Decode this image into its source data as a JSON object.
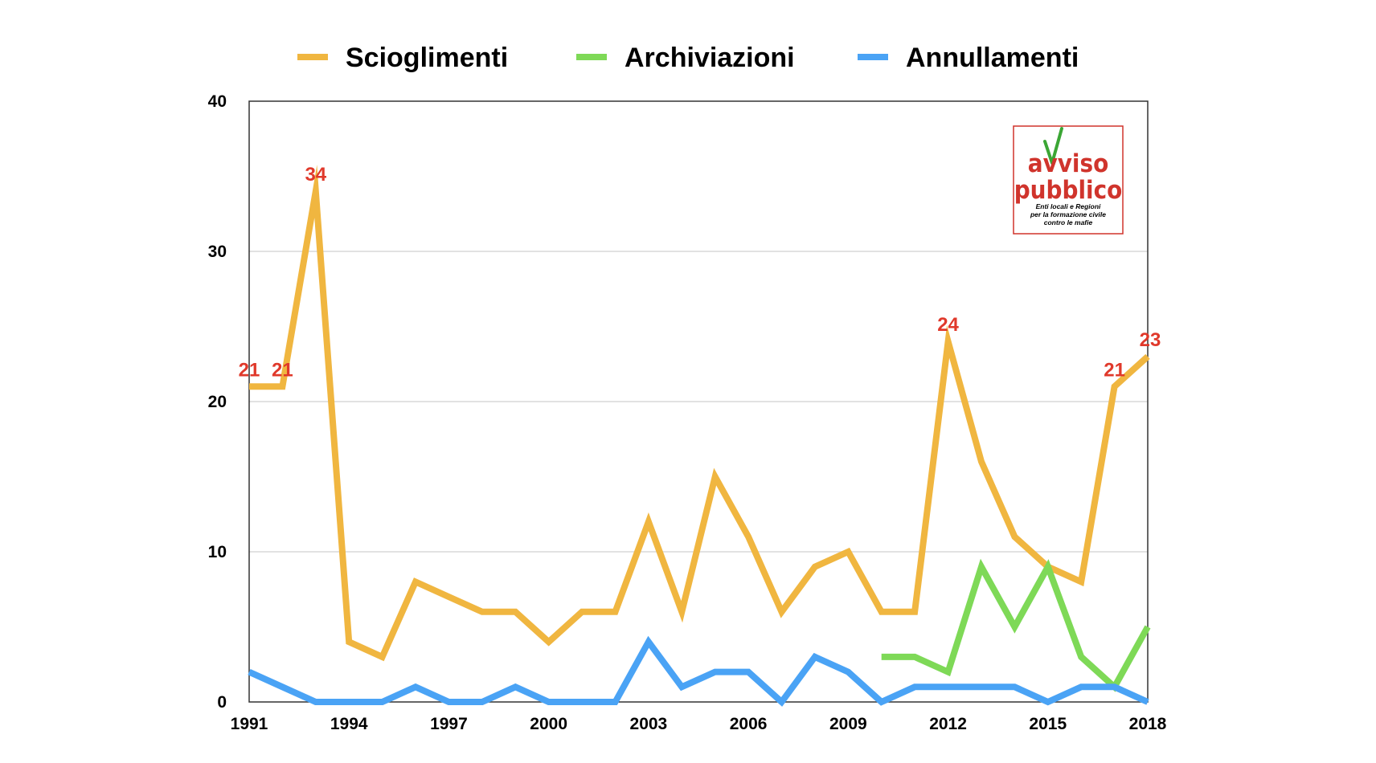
{
  "chart_data": {
    "type": "line",
    "x": [
      1991,
      1992,
      1993,
      1994,
      1995,
      1996,
      1997,
      1998,
      1999,
      2000,
      2001,
      2002,
      2003,
      2004,
      2005,
      2006,
      2007,
      2008,
      2009,
      2010,
      2011,
      2012,
      2013,
      2014,
      2015,
      2016,
      2017,
      2018
    ],
    "x_tick_labels": [
      "1991",
      "1994",
      "1997",
      "2000",
      "2003",
      "2006",
      "2009",
      "2012",
      "2015",
      "2018"
    ],
    "y_ticks": [
      "0",
      "10",
      "20",
      "30",
      "40"
    ],
    "ylim": [
      0,
      40
    ],
    "xlim": [
      1991,
      2018
    ],
    "grid": "horizontal",
    "legend_position": "top-center",
    "series": [
      {
        "name": "Scioglimenti",
        "color": "#F0B640",
        "values": [
          21,
          21,
          34,
          4,
          3,
          8,
          7,
          6,
          6,
          4,
          6,
          6,
          12,
          6,
          15,
          11,
          6,
          9,
          10,
          6,
          6,
          24,
          16,
          11,
          9,
          8,
          21,
          23
        ]
      },
      {
        "name": "Archiviazioni",
        "color": "#7ED957",
        "values": [
          null,
          null,
          null,
          null,
          null,
          null,
          null,
          null,
          null,
          null,
          null,
          null,
          null,
          null,
          null,
          null,
          null,
          null,
          null,
          3,
          3,
          2,
          9,
          5,
          9,
          3,
          1,
          5
        ]
      },
      {
        "name": "Annullamenti",
        "color": "#4AA3F5",
        "values": [
          2,
          1,
          0,
          0,
          0,
          1,
          0,
          0,
          1,
          0,
          0,
          0,
          4,
          1,
          2,
          2,
          0,
          3,
          2,
          0,
          1,
          1,
          1,
          1,
          0,
          1,
          1,
          0
        ]
      }
    ],
    "annotations": [
      {
        "x": 1991,
        "y": 21,
        "text": "21"
      },
      {
        "x": 1992,
        "y": 21,
        "text": "21"
      },
      {
        "x": 1993,
        "y": 34,
        "text": "34"
      },
      {
        "x": 2012,
        "y": 24,
        "text": "24"
      },
      {
        "x": 2017,
        "y": 21,
        "text": "21"
      },
      {
        "x": 2018,
        "y": 23,
        "text": "23"
      }
    ],
    "annotation_color": "#E0392B"
  },
  "logo": {
    "line1": "avviso",
    "line2": "pubblico",
    "tagline": [
      "Enti locali e Regioni",
      "per la formazione civile",
      "contro le mafie"
    ],
    "color": "#D0342C",
    "check_color": "#3BA635"
  }
}
